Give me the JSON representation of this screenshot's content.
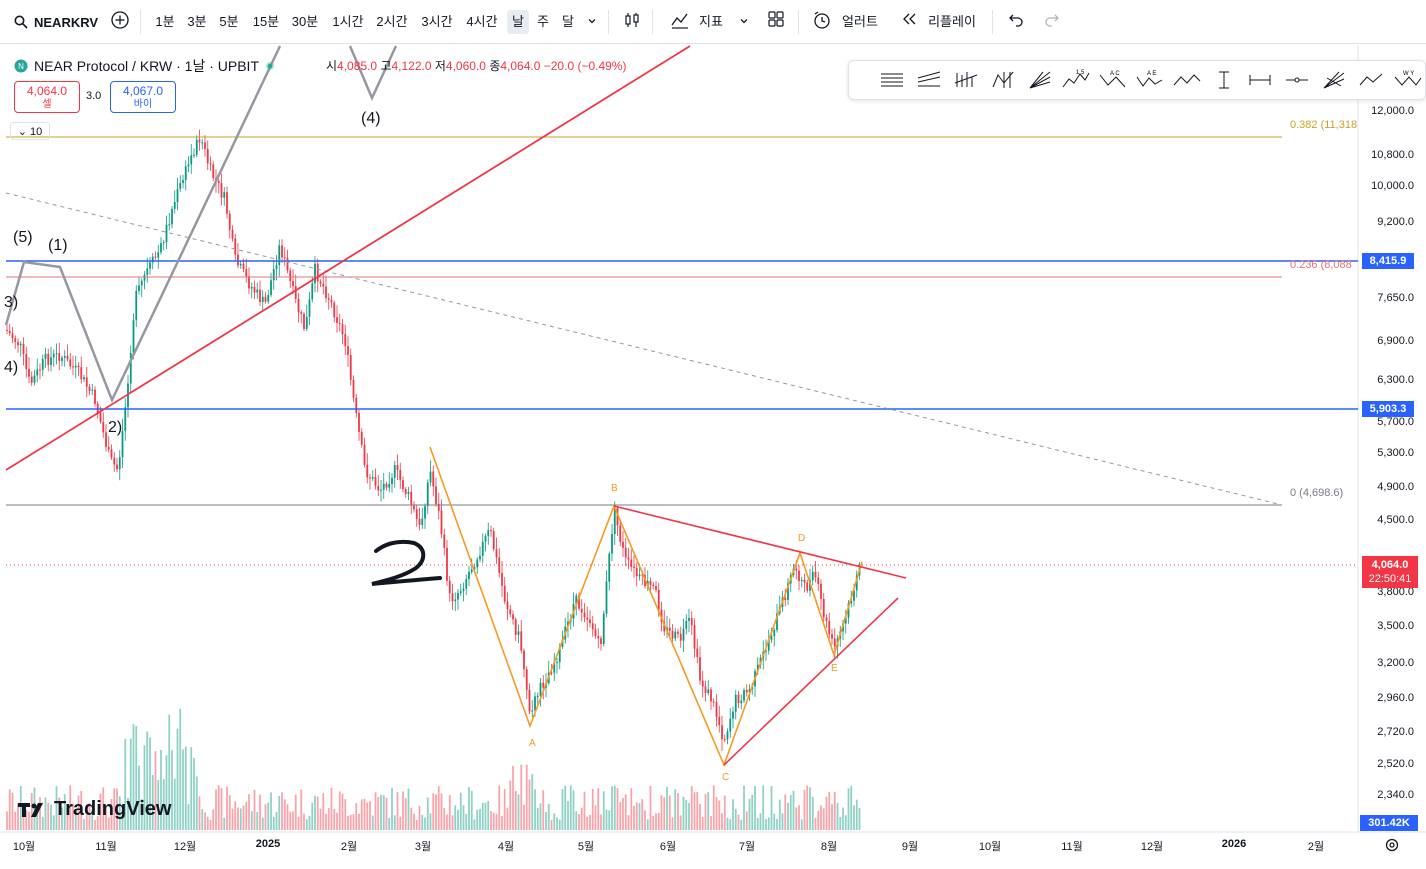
{
  "toolbar": {
    "symbol": "NEARKRV",
    "intervals": [
      "1분",
      "3분",
      "5분",
      "15분",
      "30분",
      "1시간",
      "2시간",
      "3시간",
      "4시간",
      "날",
      "주",
      "달"
    ],
    "active_interval": "날",
    "indicators_label": "지표",
    "alert_label": "얼러트",
    "replay_label": "리플레이"
  },
  "legend": {
    "title": "NEAR Protocol / KRW · 1날 · UPBIT",
    "open_label": "시",
    "open": "4,085.0",
    "high_label": "고",
    "high": "4,122.0",
    "low_label": "저",
    "low": "4,060.0",
    "close_label": "종",
    "close": "4,064.0",
    "change": "−20.0 (−0.49%)",
    "sell_price": "4,064.0",
    "sell_label": "셀",
    "spread": "3.0",
    "buy_price": "4,067.0",
    "buy_label": "바이",
    "indicator_count": "10"
  },
  "price_axis": {
    "currency": "KRW",
    "labels": [
      "12,000.0",
      "10,800.0",
      "10,000.0",
      "9,200.0",
      "7,650.0",
      "6,900.0",
      "6,300.0",
      "5,700.0",
      "5,300.0",
      "4,900.0",
      "4,500.0",
      "3,800.0",
      "3,500.0",
      "3,200.0",
      "2,960.0",
      "2,720.0",
      "2,520.0",
      "2,340.0"
    ],
    "tags": {
      "blue_high": "8,415.9",
      "blue_low": "5,903.3",
      "current_price": "4,064.0",
      "countdown": "22:50:41",
      "volume": "301.42K"
    }
  },
  "date_axis": {
    "labels": [
      "10월",
      "11월",
      "12월",
      "2025",
      "2월",
      "3월",
      "4월",
      "5월",
      "6월",
      "7월",
      "8월",
      "9월",
      "10월",
      "11월",
      "12월",
      "2026",
      "2월"
    ]
  },
  "fib_labels": {
    "f382": "0.382 (11,318",
    "f236": "0.236 (8,088",
    "f0": "0 (4,698.6)"
  },
  "wave_labels": [
    "(5)",
    "(1)",
    "3)",
    "4)",
    "2)",
    "(4)"
  ],
  "pattern_labels": [
    "A",
    "B",
    "C",
    "D",
    "E"
  ],
  "logo": "TradingView",
  "colors": {
    "up": "#089981",
    "down": "#f23645",
    "blue_line": "#2962ff",
    "orange": "#f59a23",
    "fib_gold": "#c9a227"
  },
  "chart_data": {
    "type": "candlestick",
    "title": "NEAR Protocol / KRW · 1날 · UPBIT",
    "last_close": 4064.0,
    "horizontal_levels": [
      8415.9,
      5903.3,
      4698.6
    ],
    "fib_levels": [
      {
        "ratio": 0.382,
        "price": 11318
      },
      {
        "ratio": 0.236,
        "price": 8088
      },
      {
        "ratio": 0,
        "price": 4698.6
      }
    ],
    "abcde_points": [
      {
        "label": "A",
        "price": 2750
      },
      {
        "label": "B",
        "price": 4690
      },
      {
        "label": "C",
        "price": 2540
      },
      {
        "label": "D",
        "price": 4200
      },
      {
        "label": "E",
        "price": 3250
      }
    ]
  }
}
